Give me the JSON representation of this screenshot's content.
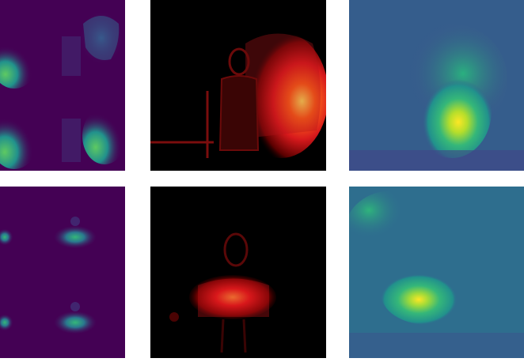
{
  "figure": {
    "rows": 2,
    "columns": 3,
    "colors": {
      "background": "#ffffff",
      "viridis_dark": "#440154",
      "viridis_mid": "#31688e",
      "viridis_teal": "#35b779",
      "viridis_yellow": "#fde725",
      "hot_black": "#000000",
      "hot_red": "#e41a1c",
      "hot_yellow": "#ffff66"
    },
    "panels": [
      {
        "id": "r1c1",
        "colormap": "viridis",
        "content": "tiled-spectrum-umbrella"
      },
      {
        "id": "r1c2",
        "colormap": "hot",
        "content": "person-with-umbrella-saliency"
      },
      {
        "id": "r1c3",
        "colormap": "viridis",
        "content": "coarse-attention-umbrella"
      },
      {
        "id": "r2c1",
        "colormap": "viridis",
        "content": "tiled-spectrum-person"
      },
      {
        "id": "r2c2",
        "colormap": "hot",
        "content": "person-saliency"
      },
      {
        "id": "r2c3",
        "colormap": "viridis",
        "content": "coarse-attention-person"
      }
    ]
  }
}
